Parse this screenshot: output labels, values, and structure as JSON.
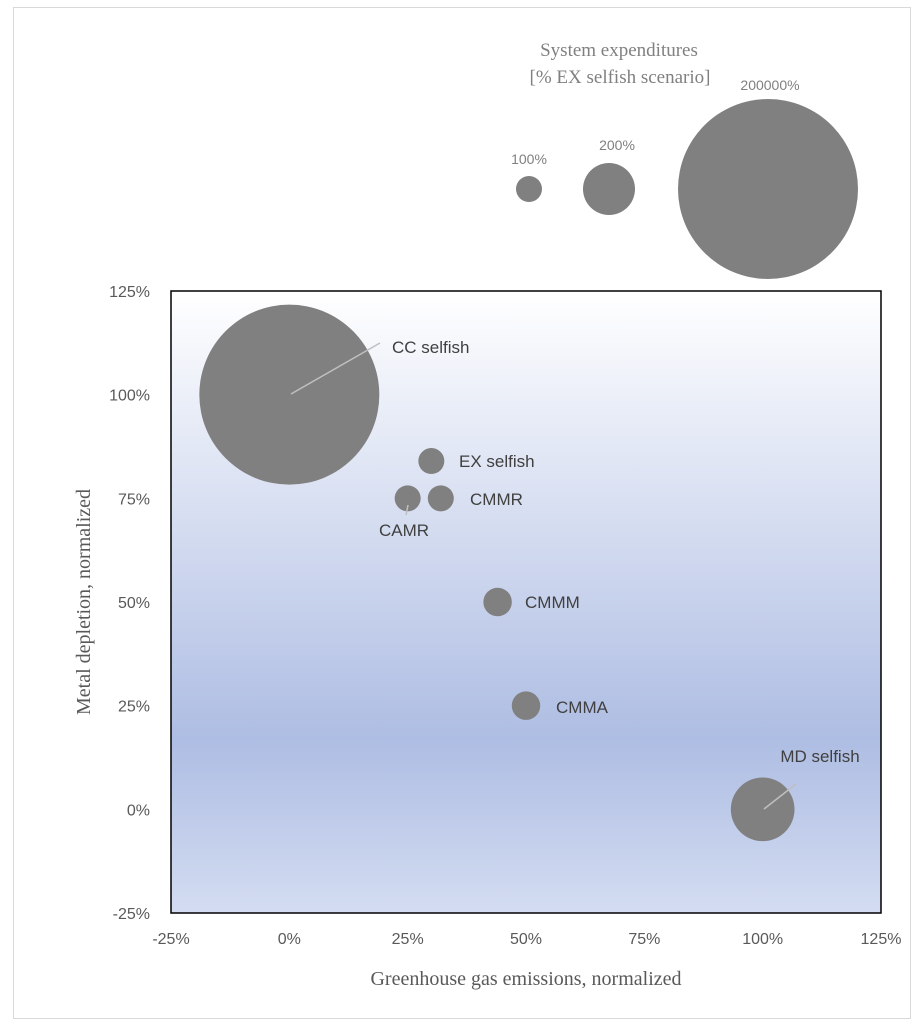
{
  "chart_data": {
    "type": "scatter",
    "subtype": "bubble",
    "xlabel": "Greenhouse gas emissions, normalized",
    "ylabel": "Metal depletion, normalized",
    "xlim": [
      -0.25,
      1.25
    ],
    "ylim": [
      -0.25,
      1.25
    ],
    "x_ticks": [
      -0.25,
      0,
      0.25,
      0.5,
      0.75,
      1.0,
      1.25
    ],
    "x_tick_labels": [
      "-25%",
      "0%",
      "25%",
      "50%",
      "75%",
      "100%",
      "125%"
    ],
    "y_ticks": [
      -0.25,
      0,
      0.25,
      0.5,
      0.75,
      1.0,
      1.25
    ],
    "y_tick_labels": [
      "-25%",
      "0%",
      "25%",
      "50%",
      "75%",
      "100%",
      "125%"
    ],
    "grid": false,
    "bubble_color": "#808080",
    "plot_gradient": [
      "#ffffff",
      "#aebde3",
      "#d3dcf1"
    ],
    "points": [
      {
        "label": "CC selfish",
        "x": 0.0,
        "y": 1.0,
        "size_pct": 200000
      },
      {
        "label": "EX selfish",
        "x": 0.3,
        "y": 0.84,
        "size_pct": 100
      },
      {
        "label": "CAMR",
        "x": 0.25,
        "y": 0.75,
        "size_pct": 100
      },
      {
        "label": "CMMR",
        "x": 0.32,
        "y": 0.75,
        "size_pct": 100
      },
      {
        "label": "CMMM",
        "x": 0.44,
        "y": 0.5,
        "size_pct": 120
      },
      {
        "label": "CMMA",
        "x": 0.5,
        "y": 0.25,
        "size_pct": 120
      },
      {
        "label": "MD selfish",
        "x": 1.0,
        "y": 0.0,
        "size_pct": 600
      }
    ],
    "size_legend": {
      "title_line1": "System expenditures",
      "title_line2": "[% EX selfish scenario]",
      "entries": [
        {
          "label": "100%",
          "size_pct": 100
        },
        {
          "label": "200%",
          "size_pct": 200
        },
        {
          "label": "200000%",
          "size_pct": 200000
        }
      ]
    }
  }
}
